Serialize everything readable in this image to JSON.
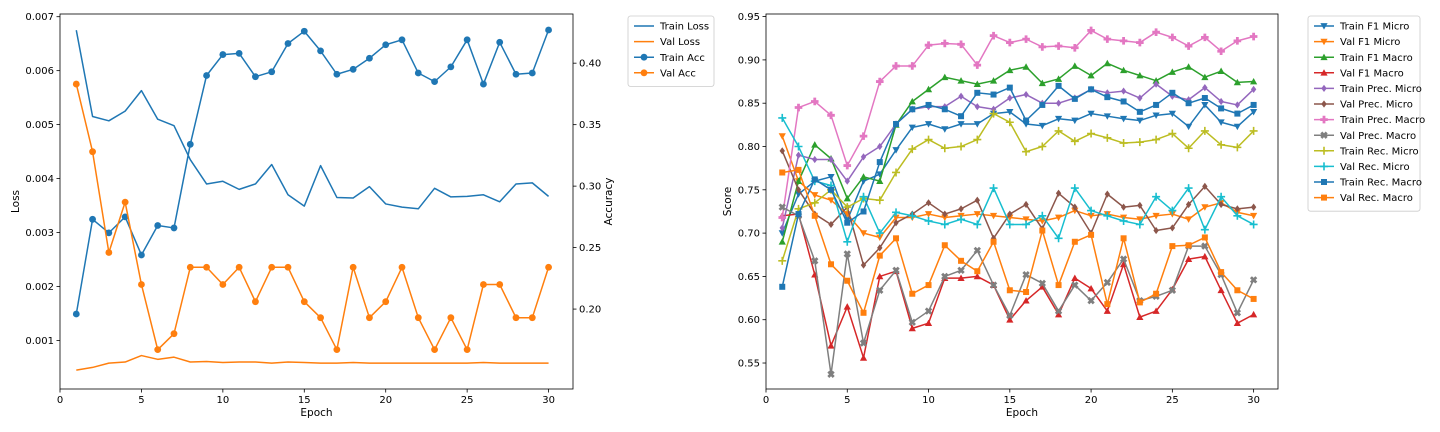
{
  "chart_data": [
    {
      "type": "line",
      "title": "",
      "xlabel": "Epoch",
      "ylabel": "Loss",
      "y2label": "Accuracy",
      "xlim": [
        0,
        31.5
      ],
      "ylim": [
        0.0001,
        0.00705
      ],
      "y2lim": [
        0.135,
        0.44
      ],
      "xticks": [
        0,
        5,
        10,
        15,
        20,
        25,
        30
      ],
      "yticks": [
        0.001,
        0.002,
        0.003,
        0.004,
        0.005,
        0.006,
        0.007
      ],
      "ytick_labels": [
        "0.001",
        "0.002",
        "0.003",
        "0.004",
        "0.005",
        "0.006",
        "0.007"
      ],
      "y2ticks": [
        0.2,
        0.25,
        0.3,
        0.35,
        0.4
      ],
      "y2tick_labels": [
        "0.20",
        "0.25",
        "0.30",
        "0.35",
        "0.40"
      ],
      "grid": false,
      "legend_position": "outside-right",
      "x": [
        1,
        2,
        3,
        4,
        5,
        6,
        7,
        8,
        9,
        10,
        11,
        12,
        13,
        14,
        15,
        16,
        17,
        18,
        19,
        20,
        21,
        22,
        23,
        24,
        25,
        26,
        27,
        28,
        29,
        30
      ],
      "series": [
        {
          "name": "Train Loss",
          "axis": "left",
          "marker": "none",
          "color": "#1f77b4",
          "values": [
            0.00675,
            0.00515,
            0.00507,
            0.00525,
            0.00563,
            0.0051,
            0.00498,
            0.00435,
            0.0039,
            0.00395,
            0.0038,
            0.0039,
            0.00426,
            0.0037,
            0.00349,
            0.00424,
            0.00365,
            0.00364,
            0.00385,
            0.00353,
            0.00347,
            0.00344,
            0.00382,
            0.00366,
            0.00367,
            0.0037,
            0.00357,
            0.0039,
            0.00392,
            0.00367
          ]
        },
        {
          "name": "Val Loss",
          "axis": "left",
          "marker": "none",
          "color": "#ff7f0e",
          "values": [
            0.00045,
            0.0005,
            0.00058,
            0.0006,
            0.00072,
            0.00065,
            0.00069,
            0.0006,
            0.00061,
            0.00059,
            0.0006,
            0.0006,
            0.00058,
            0.0006,
            0.00059,
            0.00058,
            0.00058,
            0.00059,
            0.00058,
            0.00058,
            0.00058,
            0.00058,
            0.00058,
            0.00058,
            0.00058,
            0.00059,
            0.00058,
            0.00058,
            0.00058,
            0.00058
          ]
        },
        {
          "name": "Train Acc",
          "axis": "right",
          "marker": "circle",
          "color": "#1f77b4",
          "values": [
            0.196,
            0.273,
            0.262,
            0.275,
            0.244,
            0.268,
            0.266,
            0.334,
            0.39,
            0.407,
            0.408,
            0.389,
            0.393,
            0.416,
            0.426,
            0.41,
            0.391,
            0.395,
            0.404,
            0.415,
            0.419,
            0.392,
            0.385,
            0.397,
            0.419,
            0.383,
            0.417,
            0.391,
            0.392,
            0.427
          ]
        },
        {
          "name": "Val Acc",
          "axis": "right",
          "marker": "circle",
          "color": "#ff7f0e",
          "values": [
            0.383,
            0.328,
            0.246,
            0.287,
            0.22,
            0.167,
            0.18,
            0.234,
            0.234,
            0.22,
            0.234,
            0.206,
            0.234,
            0.234,
            0.206,
            0.193,
            0.167,
            0.234,
            0.193,
            0.206,
            0.234,
            0.193,
            0.167,
            0.193,
            0.167,
            0.22,
            0.22,
            0.193,
            0.193,
            0.234
          ]
        }
      ]
    },
    {
      "type": "line",
      "title": "",
      "xlabel": "Epoch",
      "ylabel": "Score",
      "xlim": [
        0,
        31.5
      ],
      "ylim": [
        0.52,
        0.953
      ],
      "xticks": [
        0,
        5,
        10,
        15,
        20,
        25,
        30
      ],
      "yticks": [
        0.55,
        0.6,
        0.65,
        0.7,
        0.75,
        0.8,
        0.85,
        0.9,
        0.95
      ],
      "ytick_labels": [
        "0.55",
        "0.60",
        "0.65",
        "0.70",
        "0.75",
        "0.80",
        "0.85",
        "0.90",
        "0.95"
      ],
      "grid": false,
      "legend_position": "outside-right",
      "x": [
        1,
        2,
        3,
        4,
        5,
        6,
        7,
        8,
        9,
        10,
        11,
        12,
        13,
        14,
        15,
        16,
        17,
        18,
        19,
        20,
        21,
        22,
        23,
        24,
        25,
        26,
        27,
        28,
        29,
        30
      ],
      "series": [
        {
          "name": "Train F1 Micro",
          "marker": "triangle-down",
          "color": "#1f77b4",
          "values": [
            0.7,
            0.745,
            0.76,
            0.765,
            0.715,
            0.76,
            0.768,
            0.796,
            0.822,
            0.826,
            0.82,
            0.826,
            0.826,
            0.838,
            0.84,
            0.826,
            0.824,
            0.832,
            0.83,
            0.838,
            0.835,
            0.832,
            0.83,
            0.836,
            0.838,
            0.823,
            0.848,
            0.828,
            0.823,
            0.84
          ]
        },
        {
          "name": "Val F1 Micro",
          "marker": "triangle-down",
          "color": "#ff7f0e",
          "values": [
            0.812,
            0.76,
            0.744,
            0.738,
            0.722,
            0.7,
            0.695,
            0.718,
            0.718,
            0.722,
            0.718,
            0.72,
            0.722,
            0.72,
            0.718,
            0.716,
            0.714,
            0.718,
            0.726,
            0.72,
            0.722,
            0.718,
            0.716,
            0.72,
            0.722,
            0.716,
            0.73,
            0.735,
            0.724,
            0.72
          ]
        },
        {
          "name": "Train F1 Macro",
          "marker": "triangle-up",
          "color": "#2ca02c",
          "values": [
            0.69,
            0.76,
            0.802,
            0.786,
            0.74,
            0.765,
            0.76,
            0.825,
            0.852,
            0.866,
            0.88,
            0.876,
            0.872,
            0.876,
            0.888,
            0.892,
            0.873,
            0.878,
            0.893,
            0.882,
            0.896,
            0.888,
            0.882,
            0.876,
            0.886,
            0.892,
            0.88,
            0.887,
            0.874,
            0.875
          ]
        },
        {
          "name": "Val F1 Macro",
          "marker": "triangle-up",
          "color": "#d62728",
          "values": [
            0.72,
            0.722,
            0.652,
            0.57,
            0.615,
            0.556,
            0.65,
            0.656,
            0.59,
            0.596,
            0.648,
            0.648,
            0.65,
            0.64,
            0.6,
            0.622,
            0.638,
            0.606,
            0.648,
            0.636,
            0.61,
            0.664,
            0.603,
            0.61,
            0.635,
            0.67,
            0.673,
            0.634,
            0.596,
            0.606
          ]
        },
        {
          "name": "Train Prec. Micro",
          "marker": "diamond",
          "color": "#9467bd",
          "values": [
            0.706,
            0.79,
            0.785,
            0.785,
            0.76,
            0.788,
            0.8,
            0.826,
            0.843,
            0.846,
            0.846,
            0.858,
            0.846,
            0.843,
            0.856,
            0.86,
            0.85,
            0.85,
            0.856,
            0.866,
            0.862,
            0.864,
            0.856,
            0.872,
            0.858,
            0.854,
            0.868,
            0.852,
            0.848,
            0.866
          ]
        },
        {
          "name": "Val Prec. Micro",
          "marker": "diamond",
          "color": "#8c564b",
          "values": [
            0.795,
            0.75,
            0.722,
            0.71,
            0.73,
            0.663,
            0.683,
            0.712,
            0.722,
            0.735,
            0.722,
            0.728,
            0.738,
            0.694,
            0.722,
            0.733,
            0.705,
            0.746,
            0.73,
            0.7,
            0.745,
            0.73,
            0.732,
            0.703,
            0.706,
            0.733,
            0.754,
            0.733,
            0.728,
            0.73
          ]
        },
        {
          "name": "Train Prec. Macro",
          "marker": "plus-filled",
          "color": "#e377c2",
          "values": [
            0.718,
            0.845,
            0.852,
            0.836,
            0.778,
            0.812,
            0.875,
            0.893,
            0.893,
            0.917,
            0.919,
            0.918,
            0.894,
            0.928,
            0.92,
            0.924,
            0.915,
            0.916,
            0.914,
            0.934,
            0.924,
            0.922,
            0.92,
            0.932,
            0.926,
            0.916,
            0.926,
            0.91,
            0.922,
            0.927
          ]
        },
        {
          "name": "Val Prec. Macro",
          "marker": "x-filled",
          "color": "#7f7f7f",
          "values": [
            0.73,
            0.72,
            0.668,
            0.537,
            0.676,
            0.573,
            0.634,
            0.657,
            0.597,
            0.61,
            0.65,
            0.657,
            0.68,
            0.64,
            0.605,
            0.652,
            0.642,
            0.61,
            0.64,
            0.622,
            0.643,
            0.67,
            0.622,
            0.627,
            0.634,
            0.685,
            0.685,
            0.652,
            0.608,
            0.646
          ]
        },
        {
          "name": "Train Rec. Micro",
          "marker": "plus",
          "color": "#bcbd22",
          "values": [
            0.668,
            0.728,
            0.735,
            0.75,
            0.73,
            0.74,
            0.738,
            0.77,
            0.797,
            0.808,
            0.798,
            0.8,
            0.808,
            0.838,
            0.828,
            0.794,
            0.8,
            0.818,
            0.806,
            0.815,
            0.81,
            0.804,
            0.805,
            0.808,
            0.815,
            0.798,
            0.818,
            0.802,
            0.799,
            0.818
          ]
        },
        {
          "name": "Val Rec. Micro",
          "marker": "plus",
          "color": "#17becf",
          "values": [
            0.833,
            0.8,
            0.76,
            0.755,
            0.69,
            0.742,
            0.7,
            0.724,
            0.72,
            0.714,
            0.71,
            0.716,
            0.71,
            0.752,
            0.71,
            0.71,
            0.72,
            0.694,
            0.752,
            0.726,
            0.72,
            0.714,
            0.71,
            0.742,
            0.726,
            0.752,
            0.704,
            0.742,
            0.72,
            0.71
          ]
        },
        {
          "name": "Train Rec. Macro",
          "marker": "square",
          "color": "#1f77b4",
          "values": [
            0.638,
            0.722,
            0.762,
            0.75,
            0.712,
            0.725,
            0.782,
            0.826,
            0.843,
            0.848,
            0.843,
            0.835,
            0.862,
            0.86,
            0.868,
            0.83,
            0.848,
            0.87,
            0.855,
            0.866,
            0.857,
            0.852,
            0.84,
            0.848,
            0.862,
            0.85,
            0.856,
            0.844,
            0.838,
            0.848
          ]
        },
        {
          "name": "Val Rec. Macro",
          "marker": "square",
          "color": "#ff7f0e",
          "values": [
            0.77,
            0.773,
            0.72,
            0.664,
            0.645,
            0.608,
            0.674,
            0.694,
            0.63,
            0.64,
            0.686,
            0.668,
            0.656,
            0.69,
            0.634,
            0.632,
            0.703,
            0.64,
            0.69,
            0.698,
            0.618,
            0.694,
            0.62,
            0.63,
            0.685,
            0.686,
            0.695,
            0.655,
            0.634,
            0.624
          ]
        }
      ]
    }
  ]
}
